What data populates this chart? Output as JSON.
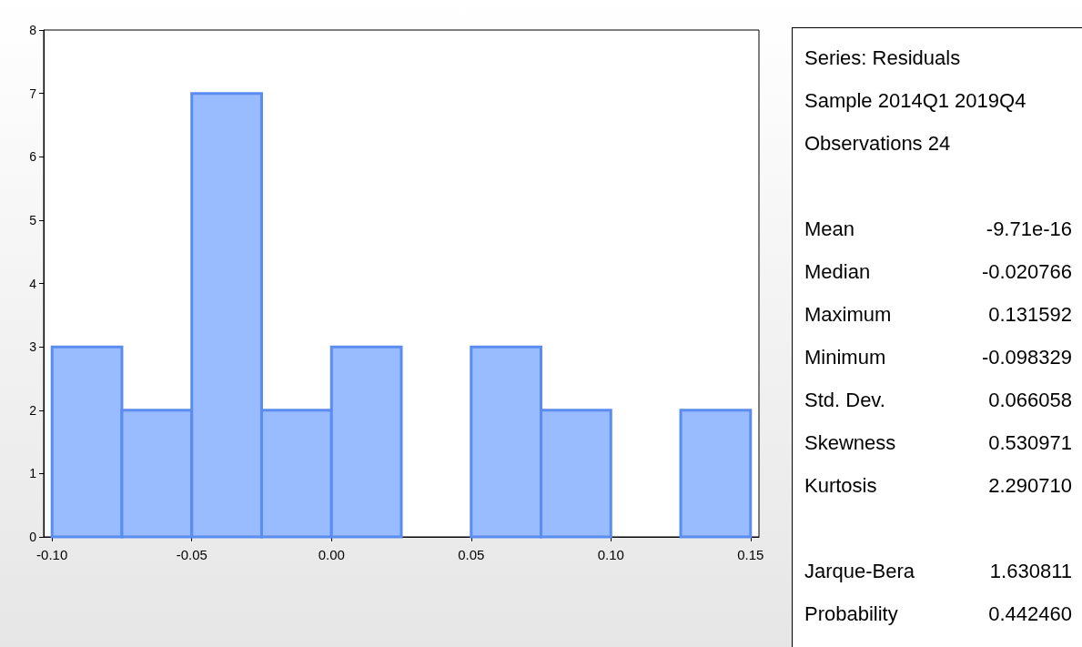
{
  "chart_data": [
    {
      "type": "histogram",
      "bins": [
        -0.1,
        -0.075,
        -0.05,
        -0.025,
        0.0,
        0.025,
        0.05,
        0.075,
        0.1,
        0.125,
        0.15
      ],
      "values": [
        3,
        2,
        7,
        2,
        3,
        0,
        3,
        2,
        0,
        2
      ],
      "color": "#99bbff",
      "xlim": [
        -0.103,
        0.153
      ],
      "xticks": [
        {
          "value": -0.1,
          "label": "-0.10"
        },
        {
          "value": -0.05,
          "label": "-0.05"
        },
        {
          "value": 0.0,
          "label": "0.00"
        },
        {
          "value": 0.05,
          "label": "0.05"
        },
        {
          "value": 0.1,
          "label": "0.10"
        },
        {
          "value": 0.15,
          "label": "0.15"
        }
      ],
      "ylim": [
        0,
        8
      ],
      "yticks": [
        0,
        1,
        2,
        3,
        4,
        5,
        6,
        7,
        8
      ],
      "grid": false
    },
    {
      "type": "other",
      "annotations": [
        "Series: Residuals",
        "Sample 2014Q1 2019Q4",
        "Observations 24",
        "Mean -9.71e-16",
        "Median -0.020766",
        "Maximum 0.131592",
        "Minimum -0.098329",
        "Std. Dev. 0.066058",
        "Skewness 0.530971",
        "Kurtosis 2.290710",
        "Jarque-Bera 1.630811",
        "Probability 0.442460"
      ]
    }
  ]
}
